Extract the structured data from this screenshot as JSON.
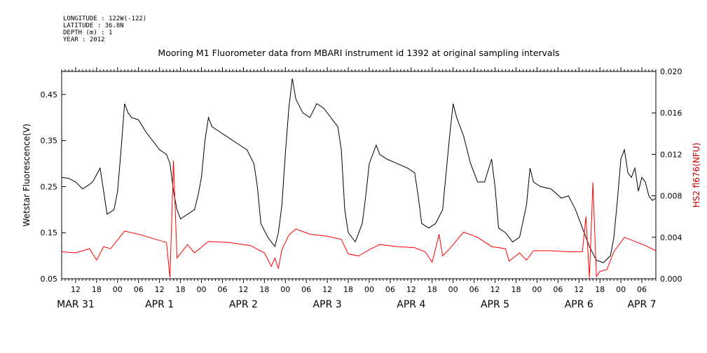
{
  "header": {
    "longitude": "LONGITUDE : 122W(-122)",
    "latitude": "LATITUDE : 36.8N",
    "depth": "DEPTH (m) : 1",
    "year": "YEAR : 2012"
  },
  "colors": {
    "primary_series": "#000000",
    "secondary_series": "#ff0000",
    "secondary_axis_label": "#cc0000"
  },
  "chart_data": {
    "type": "line",
    "title": "Mooring M1 Fluorometer data from MBARI instrument id 1392 at original sampling intervals",
    "ylabel": "Wetstar Fluorescence(V)",
    "y2label": "HS2 fl676(NFU)",
    "xlim": [
      "2012-03-31T08:00",
      "2012-04-07T10:00"
    ],
    "ylim": [
      0.05,
      0.5
    ],
    "y2lim": [
      0.0,
      0.02
    ],
    "yticks": [
      "0.05",
      "0.15",
      "0.25",
      "0.35",
      "0.45"
    ],
    "y2ticks": [
      "0.000",
      "0.004",
      "0.008",
      "0.012",
      "0.016",
      "0.020"
    ],
    "xticks": [
      {
        "t": "2012-03-31T12:00",
        "label": "12"
      },
      {
        "t": "2012-03-31T18:00",
        "label": "18"
      },
      {
        "t": "2012-04-01T00:00",
        "label": "00"
      },
      {
        "t": "2012-04-01T06:00",
        "label": "06"
      },
      {
        "t": "2012-04-01T12:00",
        "label": "12"
      },
      {
        "t": "2012-04-01T18:00",
        "label": "18"
      },
      {
        "t": "2012-04-02T00:00",
        "label": "00"
      },
      {
        "t": "2012-04-02T06:00",
        "label": "06"
      },
      {
        "t": "2012-04-02T12:00",
        "label": "12"
      },
      {
        "t": "2012-04-02T18:00",
        "label": "18"
      },
      {
        "t": "2012-04-03T00:00",
        "label": "00"
      },
      {
        "t": "2012-04-03T06:00",
        "label": "06"
      },
      {
        "t": "2012-04-03T12:00",
        "label": "12"
      },
      {
        "t": "2012-04-03T18:00",
        "label": "18"
      },
      {
        "t": "2012-04-04T00:00",
        "label": "00"
      },
      {
        "t": "2012-04-04T06:00",
        "label": "06"
      },
      {
        "t": "2012-04-04T12:00",
        "label": "12"
      },
      {
        "t": "2012-04-04T18:00",
        "label": "18"
      },
      {
        "t": "2012-04-05T00:00",
        "label": "00"
      },
      {
        "t": "2012-04-05T06:00",
        "label": "06"
      },
      {
        "t": "2012-04-05T12:00",
        "label": "12"
      },
      {
        "t": "2012-04-05T18:00",
        "label": "18"
      },
      {
        "t": "2012-04-06T00:00",
        "label": "00"
      },
      {
        "t": "2012-04-06T06:00",
        "label": "06"
      },
      {
        "t": "2012-04-06T12:00",
        "label": "12"
      },
      {
        "t": "2012-04-06T18:00",
        "label": "18"
      },
      {
        "t": "2012-04-07T00:00",
        "label": "00"
      },
      {
        "t": "2012-04-07T06:00",
        "label": "06"
      }
    ],
    "day_labels": [
      {
        "t": "2012-03-31T12:00",
        "label": "MAR 31"
      },
      {
        "t": "2012-04-01T12:00",
        "label": "APR  1"
      },
      {
        "t": "2012-04-02T12:00",
        "label": "APR  2"
      },
      {
        "t": "2012-04-03T12:00",
        "label": "APR  3"
      },
      {
        "t": "2012-04-04T12:00",
        "label": "APR  4"
      },
      {
        "t": "2012-04-05T12:00",
        "label": "APR  5"
      },
      {
        "t": "2012-04-06T12:00",
        "label": "APR  6"
      },
      {
        "t": "2012-04-07T06:00",
        "label": "APR  7"
      }
    ],
    "series": [
      {
        "axis": "left",
        "color": "#000000",
        "points": [
          [
            "2012-03-31T08:00",
            0.27
          ],
          [
            "2012-03-31T10:00",
            0.268
          ],
          [
            "2012-03-31T12:00",
            0.26
          ],
          [
            "2012-03-31T14:00",
            0.245
          ],
          [
            "2012-03-31T16:00",
            0.255
          ],
          [
            "2012-03-31T17:00",
            0.262
          ],
          [
            "2012-03-31T19:00",
            0.29
          ],
          [
            "2012-03-31T20:00",
            0.24
          ],
          [
            "2012-03-31T21:00",
            0.19
          ],
          [
            "2012-03-31T23:00",
            0.2
          ],
          [
            "2012-04-01T00:00",
            0.24
          ],
          [
            "2012-04-01T01:00",
            0.33
          ],
          [
            "2012-04-01T02:00",
            0.43
          ],
          [
            "2012-04-01T03:00",
            0.41
          ],
          [
            "2012-04-01T04:00",
            0.4
          ],
          [
            "2012-04-01T06:00",
            0.395
          ],
          [
            "2012-04-01T08:00",
            0.37
          ],
          [
            "2012-04-01T10:00",
            0.35
          ],
          [
            "2012-04-01T12:00",
            0.33
          ],
          [
            "2012-04-01T14:00",
            0.32
          ],
          [
            "2012-04-01T15:00",
            0.3
          ],
          [
            "2012-04-01T16:00",
            0.24
          ],
          [
            "2012-04-01T17:00",
            0.2
          ],
          [
            "2012-04-01T18:00",
            0.18
          ],
          [
            "2012-04-01T20:00",
            0.19
          ],
          [
            "2012-04-01T22:00",
            0.2
          ],
          [
            "2012-04-01T23:00",
            0.23
          ],
          [
            "2012-04-02T00:00",
            0.27
          ],
          [
            "2012-04-02T01:00",
            0.35
          ],
          [
            "2012-04-02T02:00",
            0.4
          ],
          [
            "2012-04-02T03:00",
            0.38
          ],
          [
            "2012-04-02T05:00",
            0.37
          ],
          [
            "2012-04-02T07:00",
            0.36
          ],
          [
            "2012-04-02T10:00",
            0.345
          ],
          [
            "2012-04-02T13:00",
            0.33
          ],
          [
            "2012-04-02T15:00",
            0.3
          ],
          [
            "2012-04-02T16:00",
            0.25
          ],
          [
            "2012-04-02T17:00",
            0.17
          ],
          [
            "2012-04-02T19:00",
            0.14
          ],
          [
            "2012-04-02T21:00",
            0.12
          ],
          [
            "2012-04-02T22:00",
            0.15
          ],
          [
            "2012-04-02T23:00",
            0.21
          ],
          [
            "2012-04-03T00:00",
            0.32
          ],
          [
            "2012-04-03T01:00",
            0.42
          ],
          [
            "2012-04-03T02:00",
            0.485
          ],
          [
            "2012-04-03T03:00",
            0.44
          ],
          [
            "2012-04-03T05:00",
            0.41
          ],
          [
            "2012-04-03T07:00",
            0.4
          ],
          [
            "2012-04-03T09:00",
            0.43
          ],
          [
            "2012-04-03T11:00",
            0.42
          ],
          [
            "2012-04-03T13:00",
            0.4
          ],
          [
            "2012-04-03T15:00",
            0.38
          ],
          [
            "2012-04-03T16:00",
            0.33
          ],
          [
            "2012-04-03T17:00",
            0.2
          ],
          [
            "2012-04-03T18:00",
            0.15
          ],
          [
            "2012-04-03T20:00",
            0.13
          ],
          [
            "2012-04-03T22:00",
            0.17
          ],
          [
            "2012-04-03T23:00",
            0.23
          ],
          [
            "2012-04-04T00:00",
            0.3
          ],
          [
            "2012-04-04T02:00",
            0.34
          ],
          [
            "2012-04-04T03:00",
            0.32
          ],
          [
            "2012-04-04T05:00",
            0.31
          ],
          [
            "2012-04-04T08:00",
            0.3
          ],
          [
            "2012-04-04T11:00",
            0.29
          ],
          [
            "2012-04-04T13:00",
            0.28
          ],
          [
            "2012-04-04T14:00",
            0.23
          ],
          [
            "2012-04-04T15:00",
            0.17
          ],
          [
            "2012-04-04T17:00",
            0.16
          ],
          [
            "2012-04-04T19:00",
            0.17
          ],
          [
            "2012-04-04T21:00",
            0.2
          ],
          [
            "2012-04-04T22:00",
            0.28
          ],
          [
            "2012-04-04T23:00",
            0.36
          ],
          [
            "2012-04-05T00:00",
            0.43
          ],
          [
            "2012-04-05T01:00",
            0.4
          ],
          [
            "2012-04-05T03:00",
            0.36
          ],
          [
            "2012-04-05T05:00",
            0.3
          ],
          [
            "2012-04-05T07:00",
            0.26
          ],
          [
            "2012-04-05T09:00",
            0.26
          ],
          [
            "2012-04-05T11:00",
            0.31
          ],
          [
            "2012-04-05T12:00",
            0.25
          ],
          [
            "2012-04-05T13:00",
            0.16
          ],
          [
            "2012-04-05T15:00",
            0.15
          ],
          [
            "2012-04-05T17:00",
            0.13
          ],
          [
            "2012-04-05T19:00",
            0.14
          ],
          [
            "2012-04-05T21:00",
            0.21
          ],
          [
            "2012-04-05T22:00",
            0.29
          ],
          [
            "2012-04-05T23:00",
            0.26
          ],
          [
            "2012-04-06T01:00",
            0.25
          ],
          [
            "2012-04-06T04:00",
            0.245
          ],
          [
            "2012-04-06T07:00",
            0.225
          ],
          [
            "2012-04-06T09:00",
            0.23
          ],
          [
            "2012-04-06T11:00",
            0.2
          ],
          [
            "2012-04-06T13:00",
            0.16
          ],
          [
            "2012-04-06T15:00",
            0.12
          ],
          [
            "2012-04-06T17:00",
            0.09
          ],
          [
            "2012-04-06T19:00",
            0.085
          ],
          [
            "2012-04-06T21:00",
            0.1
          ],
          [
            "2012-04-06T22:00",
            0.14
          ],
          [
            "2012-04-06T23:00",
            0.22
          ],
          [
            "2012-04-07T00:00",
            0.31
          ],
          [
            "2012-04-07T01:00",
            0.33
          ],
          [
            "2012-04-07T02:00",
            0.28
          ],
          [
            "2012-04-07T03:00",
            0.27
          ],
          [
            "2012-04-07T04:00",
            0.29
          ],
          [
            "2012-04-07T05:00",
            0.24
          ],
          [
            "2012-04-07T06:00",
            0.27
          ],
          [
            "2012-04-07T07:00",
            0.26
          ],
          [
            "2012-04-07T08:00",
            0.23
          ],
          [
            "2012-04-07T09:00",
            0.22
          ],
          [
            "2012-04-07T10:00",
            0.225
          ]
        ]
      },
      {
        "axis": "right",
        "color": "#ff0000",
        "points": [
          [
            "2012-03-31T08:00",
            0.0026
          ],
          [
            "2012-03-31T12:00",
            0.0025
          ],
          [
            "2012-03-31T16:00",
            0.0029
          ],
          [
            "2012-03-31T18:00",
            0.0018
          ],
          [
            "2012-03-31T20:00",
            0.0031
          ],
          [
            "2012-03-31T22:00",
            0.0029
          ],
          [
            "2012-04-01T02:00",
            0.0046
          ],
          [
            "2012-04-01T06:00",
            0.0043
          ],
          [
            "2012-04-01T10:00",
            0.0039
          ],
          [
            "2012-04-01T14:00",
            0.0035
          ],
          [
            "2012-04-01T15:00",
            0.0001
          ],
          [
            "2012-04-01T16:00",
            0.0114
          ],
          [
            "2012-04-01T17:00",
            0.002
          ],
          [
            "2012-04-01T20:00",
            0.0033
          ],
          [
            "2012-04-01T22:00",
            0.0025
          ],
          [
            "2012-04-02T02:00",
            0.0036
          ],
          [
            "2012-04-02T08:00",
            0.0035
          ],
          [
            "2012-04-02T14:00",
            0.0032
          ],
          [
            "2012-04-02T18:00",
            0.0025
          ],
          [
            "2012-04-02T20:00",
            0.0012
          ],
          [
            "2012-04-02T21:00",
            0.002
          ],
          [
            "2012-04-02T22:00",
            0.001
          ],
          [
            "2012-04-02T23:00",
            0.0028
          ],
          [
            "2012-04-03T01:00",
            0.0042
          ],
          [
            "2012-04-03T03:00",
            0.0048
          ],
          [
            "2012-04-03T07:00",
            0.0043
          ],
          [
            "2012-04-03T12:00",
            0.0041
          ],
          [
            "2012-04-03T16:00",
            0.0038
          ],
          [
            "2012-04-03T18:00",
            0.0024
          ],
          [
            "2012-04-03T21:00",
            0.0022
          ],
          [
            "2012-04-04T00:00",
            0.0028
          ],
          [
            "2012-04-04T03:00",
            0.0033
          ],
          [
            "2012-04-04T08:00",
            0.0031
          ],
          [
            "2012-04-04T13:00",
            0.003
          ],
          [
            "2012-04-04T16:00",
            0.0026
          ],
          [
            "2012-04-04T18:00",
            0.0016
          ],
          [
            "2012-04-04T20:00",
            0.0043
          ],
          [
            "2012-04-04T21:00",
            0.0022
          ],
          [
            "2012-04-04T23:00",
            0.0029
          ],
          [
            "2012-04-05T03:00",
            0.0045
          ],
          [
            "2012-04-05T07:00",
            0.004
          ],
          [
            "2012-04-05T11:00",
            0.0031
          ],
          [
            "2012-04-05T15:00",
            0.0029
          ],
          [
            "2012-04-05T16:00",
            0.0017
          ],
          [
            "2012-04-05T19:00",
            0.0025
          ],
          [
            "2012-04-05T21:00",
            0.0018
          ],
          [
            "2012-04-05T23:00",
            0.0027
          ],
          [
            "2012-04-06T04:00",
            0.0027
          ],
          [
            "2012-04-06T09:00",
            0.0026
          ],
          [
            "2012-04-06T13:00",
            0.0026
          ],
          [
            "2012-04-06T14:00",
            0.006
          ],
          [
            "2012-04-06T15:00",
            0.0001
          ],
          [
            "2012-04-06T16:00",
            0.0093
          ],
          [
            "2012-04-06T17:00",
            0.0002
          ],
          [
            "2012-04-06T18:00",
            0.0007
          ],
          [
            "2012-04-06T20:00",
            0.0009
          ],
          [
            "2012-04-06T22:00",
            0.0026
          ],
          [
            "2012-04-07T01:00",
            0.004
          ],
          [
            "2012-04-07T04:00",
            0.0036
          ],
          [
            "2012-04-07T07:00",
            0.0032
          ],
          [
            "2012-04-07T10:00",
            0.0027
          ]
        ]
      }
    ]
  }
}
